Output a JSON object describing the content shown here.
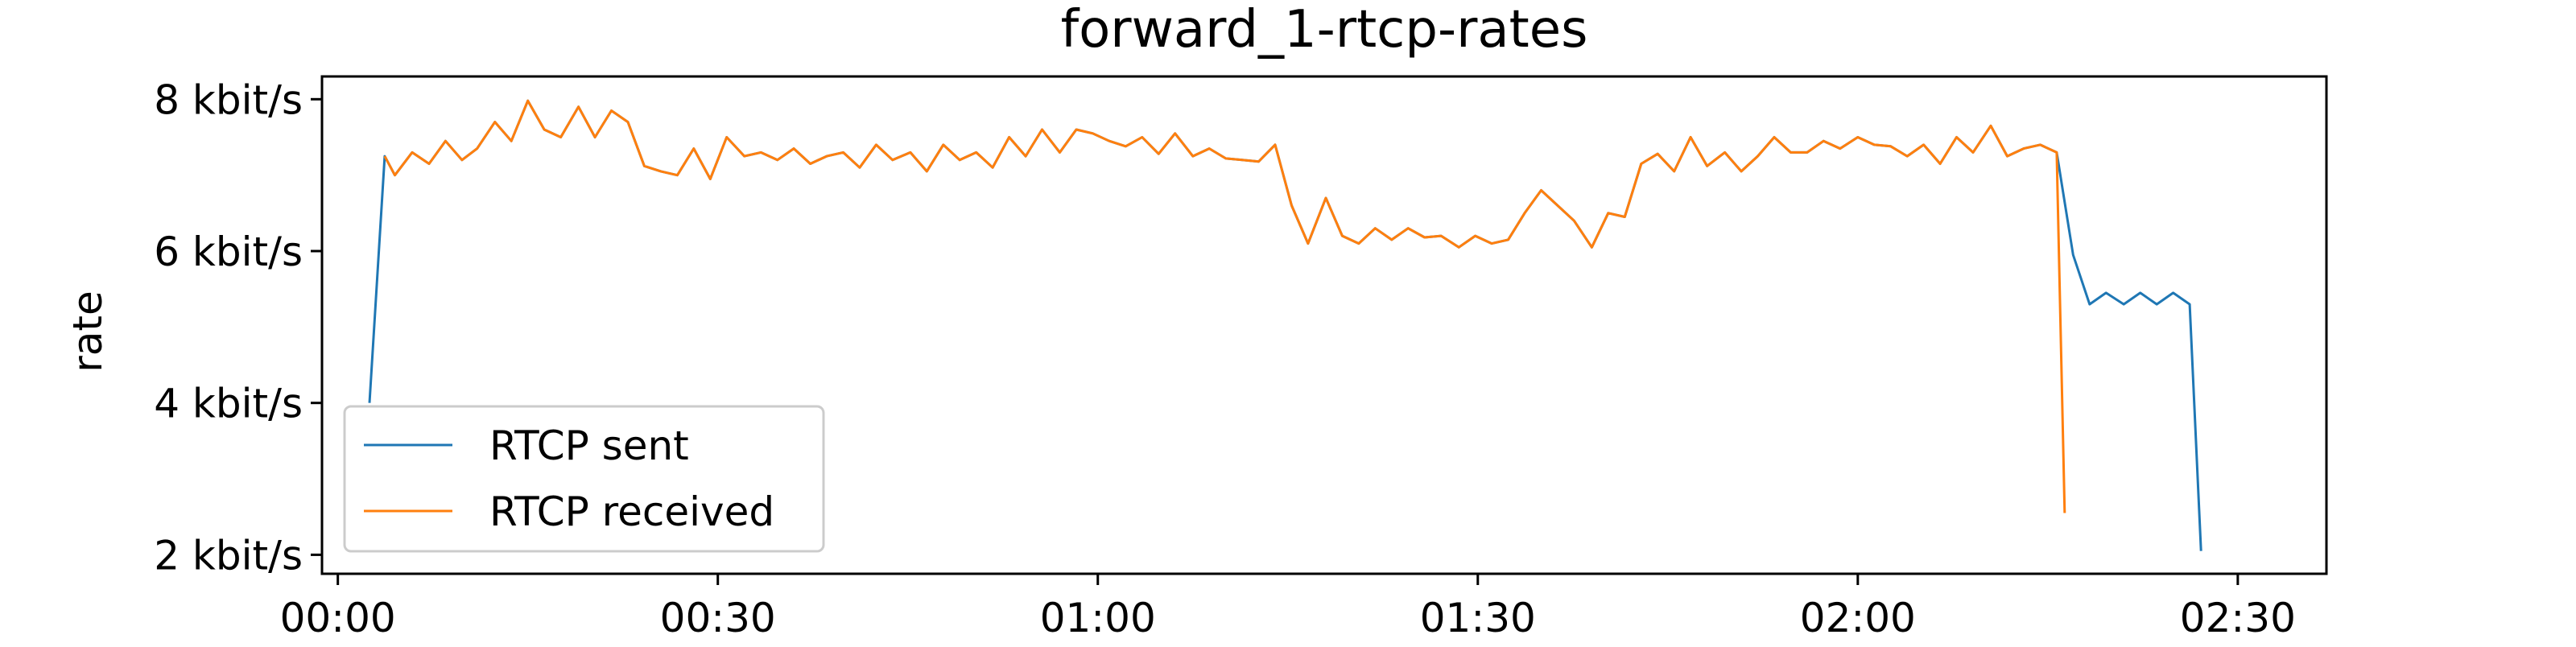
{
  "chart_data": {
    "type": "line",
    "title": "forward_1-rtcp-rates",
    "xlabel": "",
    "ylabel": "rate",
    "x_unit": "mm:ss",
    "y_unit": "kbit/s",
    "xlim_s": [
      -75,
      9420
    ],
    "ylim": [
      1.75,
      8.3
    ],
    "x_ticks_s": [
      0,
      1800,
      3600,
      5400,
      7200,
      9000
    ],
    "x_tick_labels": [
      "00:00",
      "00:30",
      "01:00",
      "01:30",
      "02:00",
      "02:30"
    ],
    "y_ticks": [
      2,
      4,
      6,
      8
    ],
    "y_tick_labels": [
      "2 kbit/s",
      "4 kbit/s",
      "6 kbit/s",
      "8 kbit/s"
    ],
    "grid": false,
    "legend_position": "lower-left",
    "series": [
      {
        "name": "RTCP sent",
        "color": "#1f77b4",
        "x": [
          150,
          222,
          270,
          352,
          432,
          510,
          588,
          660,
          744,
          822,
          900,
          978,
          1056,
          1140,
          1218,
          1296,
          1374,
          1452,
          1530,
          1608,
          1686,
          1764,
          1842,
          1926,
          2004,
          2082,
          2160,
          2238,
          2316,
          2394,
          2472,
          2550,
          2628,
          2712,
          2790,
          2868,
          2946,
          3024,
          3102,
          3180,
          3258,
          3336,
          3420,
          3498,
          3576,
          3654,
          3732,
          3810,
          3888,
          3966,
          4050,
          4128,
          4206,
          4284,
          4362,
          4440,
          4518,
          4596,
          4680,
          4758,
          4836,
          4914,
          4992,
          5070,
          5148,
          5226,
          5310,
          5388,
          5466,
          5544,
          5622,
          5700,
          5778,
          5856,
          5940,
          6018,
          6096,
          6174,
          6252,
          6330,
          6408,
          6486,
          6570,
          6648,
          6726,
          6804,
          6882,
          6960,
          7038,
          7116,
          7200,
          7278,
          7356,
          7434,
          7512,
          7590,
          7668,
          7746,
          7830,
          7908,
          7986,
          8064,
          8142,
          8220,
          8298,
          8376,
          8460,
          8538,
          8616,
          8694,
          8772,
          8826
        ],
        "y": [
          4.0,
          7.25,
          7.0,
          7.3,
          7.15,
          7.45,
          7.2,
          7.35,
          7.7,
          7.45,
          7.98,
          7.6,
          7.5,
          7.9,
          7.5,
          7.85,
          7.7,
          7.12,
          7.05,
          7.0,
          7.35,
          6.95,
          7.5,
          7.25,
          7.3,
          7.2,
          7.35,
          7.15,
          7.25,
          7.3,
          7.1,
          7.4,
          7.2,
          7.3,
          7.05,
          7.4,
          7.2,
          7.3,
          7.1,
          7.5,
          7.25,
          7.6,
          7.3,
          7.6,
          7.55,
          7.45,
          7.38,
          7.5,
          7.28,
          7.55,
          7.25,
          7.35,
          7.22,
          7.2,
          7.18,
          7.4,
          6.6,
          6.1,
          6.7,
          6.2,
          6.1,
          6.3,
          6.15,
          6.3,
          6.18,
          6.2,
          6.05,
          6.2,
          6.1,
          6.15,
          6.5,
          6.8,
          6.6,
          6.4,
          6.05,
          6.5,
          6.45,
          7.15,
          7.28,
          7.05,
          7.5,
          7.12,
          7.3,
          7.05,
          7.25,
          7.5,
          7.3,
          7.3,
          7.45,
          7.35,
          7.5,
          7.4,
          7.38,
          7.25,
          7.4,
          7.15,
          7.5,
          7.3,
          7.65,
          7.25,
          7.35,
          7.4,
          7.3,
          5.95,
          5.3,
          5.45,
          5.3,
          5.45,
          5.3,
          5.45,
          5.3,
          2.05
        ]
      },
      {
        "name": "RTCP received",
        "color": "#ff7f0e",
        "x": [
          222,
          270,
          352,
          432,
          510,
          588,
          660,
          744,
          822,
          900,
          978,
          1056,
          1140,
          1218,
          1296,
          1374,
          1452,
          1530,
          1608,
          1686,
          1764,
          1842,
          1926,
          2004,
          2082,
          2160,
          2238,
          2316,
          2394,
          2472,
          2550,
          2628,
          2712,
          2790,
          2868,
          2946,
          3024,
          3102,
          3180,
          3258,
          3336,
          3420,
          3498,
          3576,
          3654,
          3732,
          3810,
          3888,
          3966,
          4050,
          4128,
          4206,
          4284,
          4362,
          4440,
          4518,
          4596,
          4680,
          4758,
          4836,
          4914,
          4992,
          5070,
          5148,
          5226,
          5310,
          5388,
          5466,
          5544,
          5622,
          5700,
          5778,
          5856,
          5940,
          6018,
          6096,
          6174,
          6252,
          6330,
          6408,
          6486,
          6570,
          6648,
          6726,
          6804,
          6882,
          6960,
          7038,
          7116,
          7200,
          7278,
          7356,
          7434,
          7512,
          7590,
          7668,
          7746,
          7830,
          7908,
          7986,
          8064,
          8142,
          8180
        ],
        "y": [
          7.25,
          7.0,
          7.3,
          7.15,
          7.45,
          7.2,
          7.35,
          7.7,
          7.45,
          7.98,
          7.6,
          7.5,
          7.9,
          7.5,
          7.85,
          7.7,
          7.12,
          7.05,
          7.0,
          7.35,
          6.95,
          7.5,
          7.25,
          7.3,
          7.2,
          7.35,
          7.15,
          7.25,
          7.3,
          7.1,
          7.4,
          7.2,
          7.3,
          7.05,
          7.4,
          7.2,
          7.3,
          7.1,
          7.5,
          7.25,
          7.6,
          7.3,
          7.6,
          7.55,
          7.45,
          7.38,
          7.5,
          7.28,
          7.55,
          7.25,
          7.35,
          7.22,
          7.2,
          7.18,
          7.4,
          6.6,
          6.1,
          6.7,
          6.2,
          6.1,
          6.3,
          6.15,
          6.3,
          6.18,
          6.2,
          6.05,
          6.2,
          6.1,
          6.15,
          6.5,
          6.8,
          6.6,
          6.4,
          6.05,
          6.5,
          6.45,
          7.15,
          7.28,
          7.05,
          7.5,
          7.12,
          7.3,
          7.05,
          7.25,
          7.5,
          7.3,
          7.3,
          7.45,
          7.35,
          7.5,
          7.4,
          7.38,
          7.25,
          7.4,
          7.15,
          7.5,
          7.3,
          7.65,
          7.25,
          7.35,
          7.4,
          7.3,
          2.55
        ]
      }
    ]
  }
}
